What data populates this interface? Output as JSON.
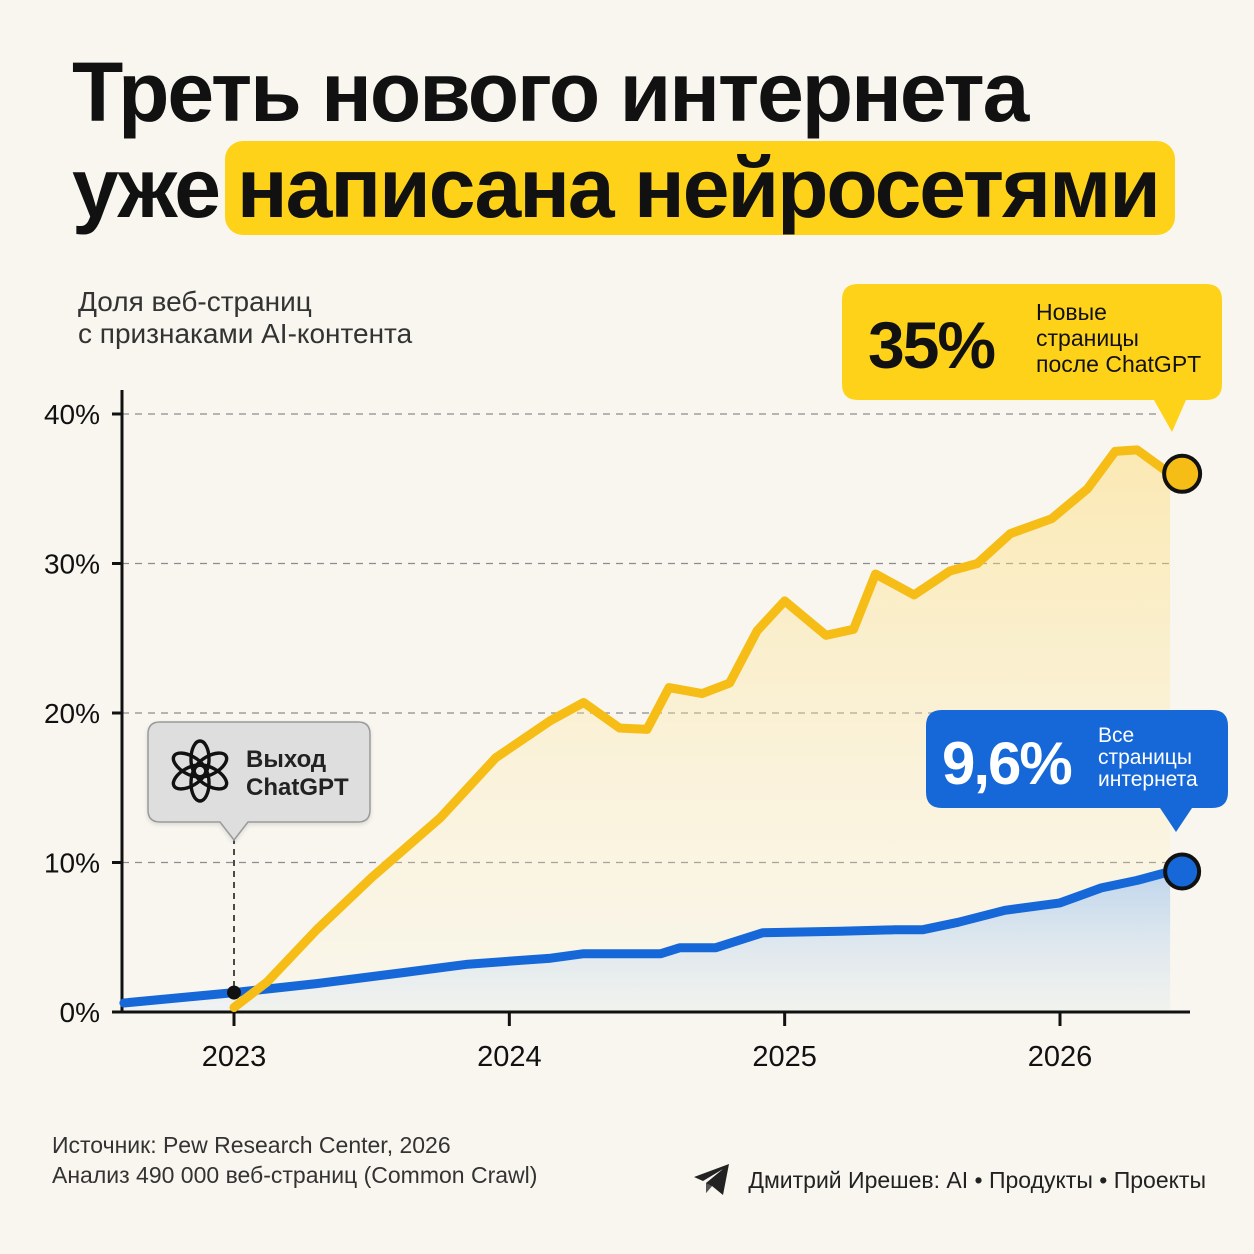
{
  "title": {
    "line1": "Треть нового интернета",
    "line2_plain": "уже",
    "line2_highlight": "написана нейросетями"
  },
  "subtitle": {
    "line1": "Доля веб-страниц",
    "line2": "с признаками AI-контента"
  },
  "colors": {
    "background": "#f8f6ef",
    "highlight": "#ffd21a",
    "new_pages": "#f6bd16",
    "all_pages": "#1668d8"
  },
  "chart_data": {
    "type": "line",
    "ylim": [
      0,
      40
    ],
    "xlim": [
      2022.6,
      2026.45
    ],
    "grid": true,
    "y_ticks": [
      "0%",
      "10%",
      "20%",
      "30%",
      "40%"
    ],
    "x_ticks": [
      "2023",
      "2024",
      "2025",
      "2026"
    ],
    "series": [
      {
        "id": "new_pages",
        "points": [
          [
            2023.0,
            0.3
          ],
          [
            2023.12,
            2.0
          ],
          [
            2023.3,
            5.5
          ],
          [
            2023.5,
            9.0
          ],
          [
            2023.75,
            13.0
          ],
          [
            2023.95,
            17.0
          ],
          [
            2024.15,
            19.5
          ],
          [
            2024.27,
            20.7
          ],
          [
            2024.4,
            19.0
          ],
          [
            2024.5,
            18.9
          ],
          [
            2024.58,
            21.7
          ],
          [
            2024.7,
            21.3
          ],
          [
            2024.8,
            22.0
          ],
          [
            2024.9,
            25.5
          ],
          [
            2025.0,
            27.5
          ],
          [
            2025.15,
            25.2
          ],
          [
            2025.25,
            25.6
          ],
          [
            2025.33,
            29.3
          ],
          [
            2025.47,
            27.9
          ],
          [
            2025.6,
            29.5
          ],
          [
            2025.7,
            30.0
          ],
          [
            2025.82,
            32.0
          ],
          [
            2025.97,
            33.0
          ],
          [
            2026.1,
            35.0
          ],
          [
            2026.2,
            37.5
          ],
          [
            2026.28,
            37.6
          ],
          [
            2026.4,
            36.0
          ]
        ],
        "callout": {
          "value": "35%",
          "text": [
            "Новые",
            "страницы",
            "после ChatGPT"
          ]
        }
      },
      {
        "id": "all_pages",
        "points": [
          [
            2022.6,
            0.6
          ],
          [
            2023.0,
            1.3
          ],
          [
            2023.3,
            1.9
          ],
          [
            2023.6,
            2.6
          ],
          [
            2023.85,
            3.2
          ],
          [
            2024.15,
            3.6
          ],
          [
            2024.27,
            3.9
          ],
          [
            2024.55,
            3.9
          ],
          [
            2024.62,
            4.3
          ],
          [
            2024.75,
            4.3
          ],
          [
            2024.92,
            5.3
          ],
          [
            2025.2,
            5.4
          ],
          [
            2025.4,
            5.5
          ],
          [
            2025.5,
            5.5
          ],
          [
            2025.63,
            6.0
          ],
          [
            2025.8,
            6.8
          ],
          [
            2026.0,
            7.3
          ],
          [
            2026.15,
            8.3
          ],
          [
            2026.28,
            8.8
          ],
          [
            2026.4,
            9.4
          ]
        ],
        "callout": {
          "value": "9,6%",
          "text": [
            "Все",
            "страницы",
            "интернета"
          ]
        }
      }
    ],
    "annotation": {
      "x": 2023.0,
      "y": 1.3,
      "text": [
        "Выход",
        "ChatGPT"
      ]
    }
  },
  "source": {
    "line1": "Источник: Pew Research Center, 2026",
    "line2": "Анализ 490 000 веб-страниц (Common Crawl)"
  },
  "credit": {
    "text": "Дмитрий Ирешев: AI • Продукты • Проекты",
    "icon": "telegram-icon"
  }
}
